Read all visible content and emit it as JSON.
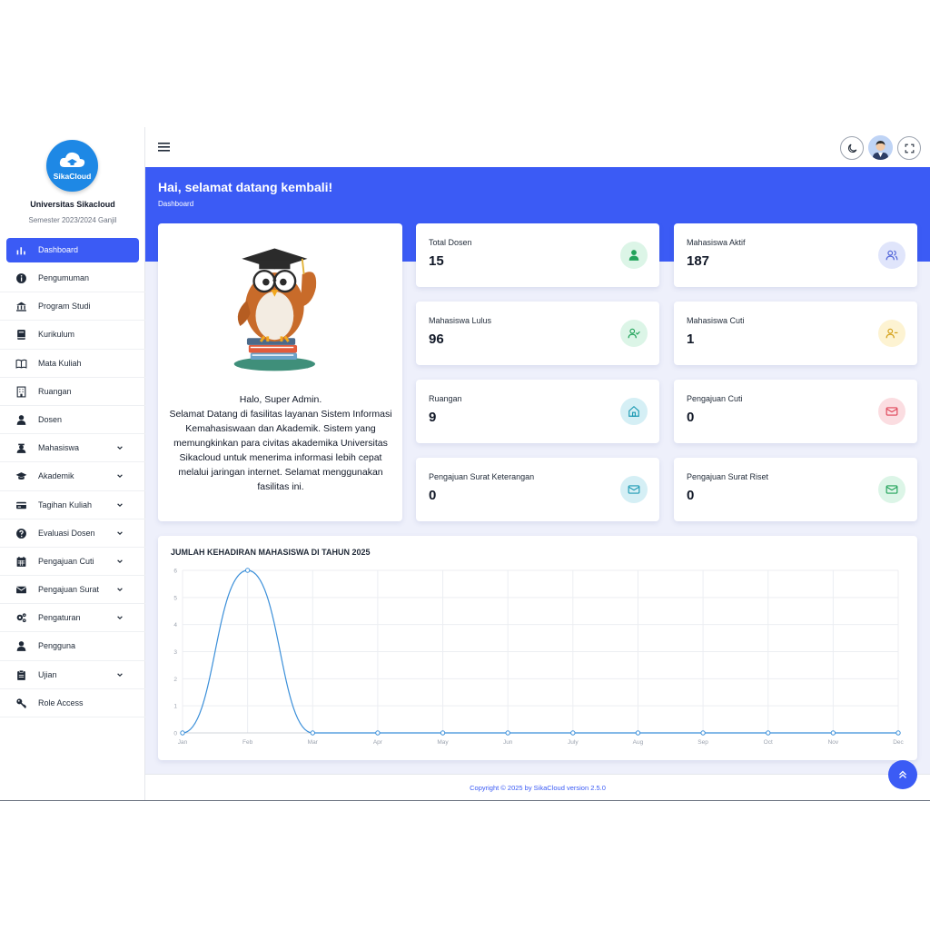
{
  "sidebar": {
    "logo_text": "SikaCloud",
    "university": "Universitas Sikacloud",
    "semester": "Semester 2023/2024 Ganjil",
    "items": [
      {
        "label": "Dashboard",
        "icon": "bar-chart-icon",
        "active": true,
        "has_chevron": false
      },
      {
        "label": "Pengumuman",
        "icon": "info-icon",
        "has_chevron": false
      },
      {
        "label": "Program Studi",
        "icon": "institution-icon",
        "has_chevron": false
      },
      {
        "label": "Kurikulum",
        "icon": "book-icon",
        "has_chevron": false
      },
      {
        "label": "Mata Kuliah",
        "icon": "open-book-icon",
        "has_chevron": false
      },
      {
        "label": "Ruangan",
        "icon": "building-icon",
        "has_chevron": false
      },
      {
        "label": "Dosen",
        "icon": "lecturer-icon",
        "has_chevron": false
      },
      {
        "label": "Mahasiswa",
        "icon": "student-icon",
        "has_chevron": true
      },
      {
        "label": "Akademik",
        "icon": "graduation-cap-icon",
        "has_chevron": true
      },
      {
        "label": "Tagihan Kuliah",
        "icon": "credit-card-icon",
        "has_chevron": true
      },
      {
        "label": "Evaluasi Dosen",
        "icon": "question-icon",
        "has_chevron": true
      },
      {
        "label": "Pengajuan Cuti",
        "icon": "calendar-icon",
        "has_chevron": true
      },
      {
        "label": "Pengajuan Surat",
        "icon": "envelope-icon",
        "has_chevron": true
      },
      {
        "label": "Pengaturan",
        "icon": "gears-icon",
        "has_chevron": true
      },
      {
        "label": "Pengguna",
        "icon": "user-icon",
        "has_chevron": false
      },
      {
        "label": "Ujian",
        "icon": "clipboard-icon",
        "has_chevron": true
      },
      {
        "label": "Role Access",
        "icon": "key-icon",
        "has_chevron": false
      }
    ]
  },
  "header": {
    "greeting": "Hai, selamat datang kembali!",
    "breadcrumb": "Dashboard"
  },
  "welcome": {
    "hello": "Halo, Super Admin.",
    "message": "Selamat Datang di fasilitas layanan Sistem Informasi Kemahasiswaan dan Akademik. Sistem yang memungkinkan para civitas akademika Universitas Sikacloud untuk menerima informasi lebih cepat melalui jaringan internet. Selamat menggunakan fasilitas ini."
  },
  "stats": [
    {
      "title": "Total Dosen",
      "value": "15",
      "icon": "user-icon",
      "color": "#22a35a",
      "bg": "#dcf5e7"
    },
    {
      "title": "Mahasiswa Aktif",
      "value": "187",
      "icon": "users-icon",
      "color": "#4f63d8",
      "bg": "#e0e5fb"
    },
    {
      "title": "Mahasiswa Lulus",
      "value": "96",
      "icon": "user-check-icon",
      "color": "#22a35a",
      "bg": "#dcf5e7"
    },
    {
      "title": "Mahasiswa Cuti",
      "value": "1",
      "icon": "user-minus-icon",
      "color": "#d4a017",
      "bg": "#fdf3d2"
    },
    {
      "title": "Ruangan",
      "value": "9",
      "icon": "home-icon",
      "color": "#1f9bb4",
      "bg": "#d5eff5"
    },
    {
      "title": "Pengajuan Cuti",
      "value": "0",
      "icon": "mail-icon",
      "color": "#e0465a",
      "bg": "#fbdde1"
    },
    {
      "title": "Pengajuan Surat Keterangan",
      "value": "0",
      "icon": "mail-icon",
      "color": "#1f9bb4",
      "bg": "#d5eff5"
    },
    {
      "title": "Pengajuan Surat Riset",
      "value": "0",
      "icon": "mail-icon",
      "color": "#22a35a",
      "bg": "#dcf5e7"
    }
  ],
  "chart_data": {
    "type": "line",
    "title": "JUMLAH KEHADIRAN MAHASISWA DI TAHUN 2025",
    "categories": [
      "Jan",
      "Feb",
      "Mar",
      "Apr",
      "May",
      "Jun",
      "July",
      "Aug",
      "Sep",
      "Oct",
      "Nov",
      "Dec"
    ],
    "values": [
      0,
      6,
      0,
      0,
      0,
      0,
      0,
      0,
      0,
      0,
      0,
      0
    ],
    "ylim": [
      0,
      6
    ],
    "yticks": [
      "0",
      "1",
      "2",
      "3",
      "4",
      "5",
      "6"
    ],
    "grid": true,
    "color": "#3b8fd9"
  },
  "footer": {
    "copyright": "Copyright © 2025 by SikaCloud version 2.5.0"
  }
}
